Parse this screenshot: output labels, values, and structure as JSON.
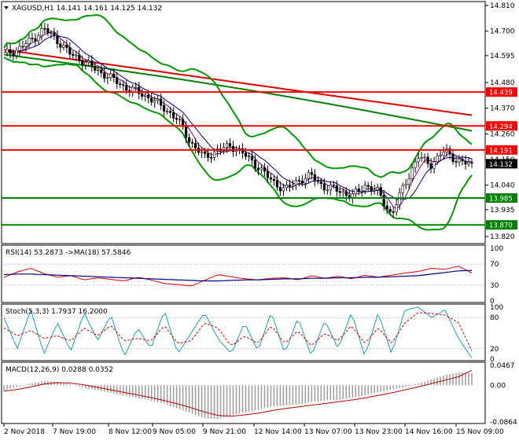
{
  "colors": {
    "green": "#008000",
    "red": "#ff0000",
    "bollinger": "#009900",
    "ma_slow": "#e00000",
    "ma_mid": "#008000",
    "navy": "#000080",
    "purple": "#800080",
    "candle": "#000000",
    "rsi_line": "#e00000",
    "rsi_ma": "#000080",
    "stoch_main": "#20a0b0",
    "stoch_signal": "#e00000",
    "macd_hist": "#a0a0a0",
    "macd_signal": "#c00000"
  },
  "main": {
    "header": "XAGUSD,H1  14.141 14.161 14.125 14.132",
    "price_ticks": [
      "14.810",
      "14.700",
      "14.595",
      "14.480",
      "14.370",
      "14.260",
      "14.150",
      "14.040",
      "13.935",
      "13.820"
    ],
    "levels": [
      {
        "label": "14.439",
        "value": 14.439,
        "color": "red"
      },
      {
        "label": "14.294",
        "value": 14.294,
        "color": "red"
      },
      {
        "label": "14.191",
        "value": 14.191,
        "color": "red"
      },
      {
        "label": "13.985",
        "value": 13.985,
        "color": "green"
      },
      {
        "label": "13.870",
        "value": 13.87,
        "color": "green"
      }
    ],
    "current_price": "14.132"
  },
  "rsi": {
    "header": "RSI(14) 53.2873  ->MA(18) 57.5846",
    "ticks": [
      "100",
      "70",
      "30",
      "0"
    ]
  },
  "stoch": {
    "header": "Stoch(5,3,3) 1.7937 16.2000",
    "ticks": [
      "100",
      "80",
      "20",
      "0"
    ]
  },
  "macd": {
    "header": "MACD(12,26,9) 0.0288 0.0352",
    "ticks": [
      "0.0467",
      "0.00",
      "-0.0864"
    ]
  },
  "time_axis": [
    "2 Nov 2018",
    "7 Nov 19:00",
    "8 Nov 12:00",
    "9 Nov 05:00",
    "9 Nov 21:00",
    "12 Nov 14:00",
    "13 Nov 07:00",
    "13 Nov 23:00",
    "14 Nov 16:00",
    "15 Nov 09:00"
  ],
  "chart_data": [
    {
      "type": "line",
      "panel": "price",
      "y_range": [
        13.8,
        14.82
      ],
      "series": [
        {
          "name": "XAGUSD",
          "values": [
            14.6,
            14.62,
            14.66,
            14.71,
            14.66,
            14.6,
            14.57,
            14.53,
            14.5,
            14.46,
            14.44,
            14.41,
            14.37,
            14.32,
            14.22,
            14.16,
            14.19,
            14.21,
            14.17,
            14.12,
            14.06,
            14.02,
            14.06,
            14.08,
            14.03,
            14.02,
            13.99,
            14.04,
            14.01,
            13.91,
            14.05,
            14.16,
            14.13,
            14.19,
            14.14,
            14.13
          ]
        }
      ]
    },
    {
      "type": "line",
      "panel": "rsi",
      "y_range": [
        0,
        100
      ],
      "series": [
        {
          "name": "RSI(14)",
          "values": [
            45,
            55,
            62,
            52,
            45,
            48,
            40,
            44,
            41,
            38,
            45,
            40,
            33,
            31,
            28,
            39,
            50,
            46,
            42,
            40,
            43,
            44,
            40,
            48,
            43,
            47,
            42,
            49,
            45,
            49,
            53,
            56,
            62,
            60,
            66,
            53
          ]
        },
        {
          "name": "MA(18)",
          "values": [
            50,
            51,
            51,
            50,
            49,
            48,
            47,
            46,
            45,
            44,
            43,
            42,
            41,
            40,
            39,
            38,
            38,
            39,
            40,
            40,
            41,
            42,
            42,
            43,
            43,
            44,
            44,
            45,
            45,
            46,
            47,
            48,
            51,
            54,
            57,
            58
          ]
        }
      ]
    },
    {
      "type": "line",
      "panel": "stoch",
      "y_range": [
        0,
        100
      ],
      "series": [
        {
          "name": "Stoch(5,3,3)",
          "values": [
            80,
            20,
            95,
            10,
            70,
            15,
            90,
            35,
            85,
            5,
            60,
            20,
            95,
            10,
            50,
            90,
            40,
            10,
            70,
            15,
            92,
            10,
            80,
            5,
            75,
            20,
            90,
            5,
            90,
            10,
            95,
            100,
            80,
            95,
            40,
            2
          ]
        },
        {
          "name": "Signal",
          "values": [
            60,
            45,
            55,
            40,
            45,
            35,
            60,
            45,
            65,
            35,
            40,
            35,
            65,
            30,
            35,
            70,
            60,
            25,
            45,
            30,
            65,
            30,
            55,
            25,
            50,
            35,
            65,
            30,
            60,
            30,
            70,
            90,
            88,
            85,
            70,
            16
          ]
        }
      ]
    },
    {
      "type": "bar",
      "panel": "macd",
      "y_range": [
        -0.0864,
        0.0467
      ],
      "series": [
        {
          "name": "MACD(12,26,9)",
          "values": [
            -0.012,
            -0.004,
            0.004,
            0.01,
            0.008,
            0.002,
            -0.006,
            -0.012,
            -0.018,
            -0.024,
            -0.03,
            -0.036,
            -0.044,
            -0.055,
            -0.066,
            -0.078,
            -0.08,
            -0.072,
            -0.064,
            -0.058,
            -0.05,
            -0.048,
            -0.045,
            -0.04,
            -0.036,
            -0.034,
            -0.03,
            -0.024,
            -0.016,
            -0.01,
            -0.004,
            0.004,
            0.014,
            0.024,
            0.03,
            0.029
          ]
        },
        {
          "name": "Signal",
          "values": [
            -0.014,
            -0.01,
            -0.004,
            0.003,
            0.006,
            0.005,
            0.001,
            -0.005,
            -0.011,
            -0.017,
            -0.023,
            -0.029,
            -0.036,
            -0.044,
            -0.053,
            -0.063,
            -0.071,
            -0.073,
            -0.07,
            -0.066,
            -0.06,
            -0.055,
            -0.051,
            -0.047,
            -0.043,
            -0.039,
            -0.035,
            -0.03,
            -0.024,
            -0.018,
            -0.011,
            -0.004,
            0.004,
            0.012,
            0.02,
            0.035
          ]
        }
      ]
    }
  ]
}
